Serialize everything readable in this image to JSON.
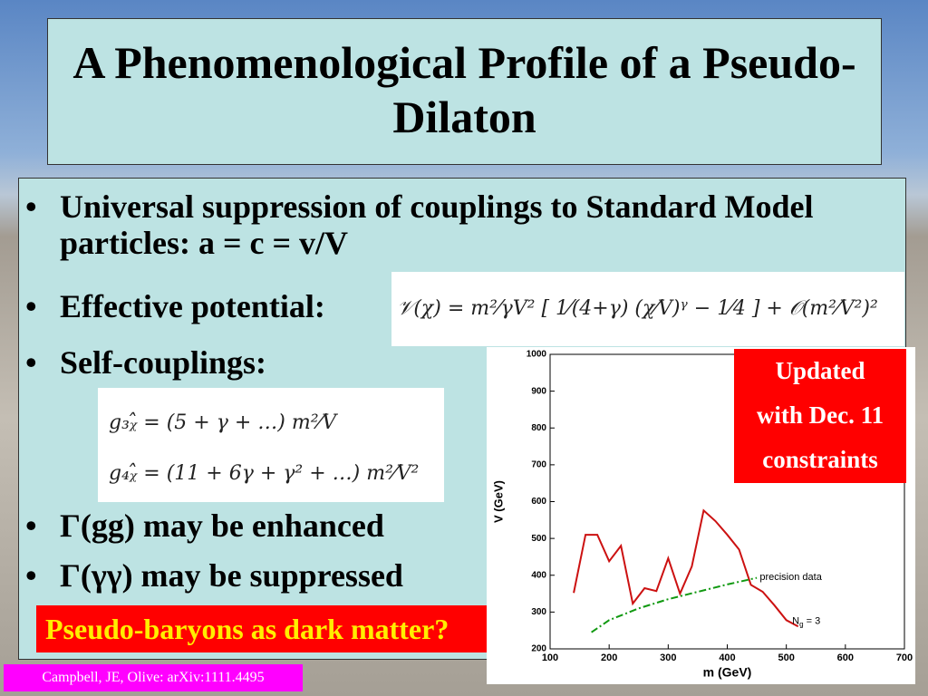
{
  "header": {
    "title": "A Phenomenological Profile of a Pseudo-Dilaton"
  },
  "bullets": [
    "Universal suppression of couplings to Standard Model particles: a = c = v/V",
    "Effective potential:",
    "Self-couplings:",
    "Γ(gg) may be enhanced",
    "Γ(γγ) may be suppressed"
  ],
  "equations": {
    "potential": "𝒱(χ) = m²⁄γV² [ 1⁄(4+γ) (χ⁄V)ᵞ − 1⁄4 ] + 𝒪(m²⁄V²)²",
    "g3": "g₃ᵪ̂ = (5 + γ + …) m²⁄V",
    "g4": "g₄ᵪ̂ = (11 + 6γ + γ² + …) m²⁄V²"
  },
  "callout": "Pseudo-baryons as dark matter?",
  "footer": "Campbell, JE, Olive: arXiv:1111.4495",
  "update_note": [
    "Updated",
    "with Dec. 11",
    "constraints"
  ],
  "chart_data": {
    "type": "line",
    "xlabel": "m (GeV)",
    "ylabel": "V (GeV)",
    "xlim": [
      100,
      700
    ],
    "ylim": [
      200,
      1000
    ],
    "xticks": [
      100,
      200,
      300,
      400,
      500,
      600,
      700
    ],
    "yticks": [
      200,
      300,
      400,
      500,
      600,
      700,
      800,
      900,
      1000
    ],
    "series": [
      {
        "name": "constraint",
        "color": "#cc1111",
        "style": "solid",
        "x": [
          140,
          160,
          180,
          200,
          220,
          240,
          260,
          280,
          300,
          320,
          340,
          360,
          380,
          400,
          420,
          440,
          460,
          480,
          500,
          520
        ],
        "values": [
          352,
          510,
          510,
          438,
          480,
          323,
          365,
          357,
          446,
          350,
          424,
          576,
          547,
          510,
          470,
          374,
          355,
          318,
          278,
          261
        ]
      },
      {
        "name": "precision data",
        "color": "#119911",
        "style": "dashdot",
        "x": [
          170,
          200,
          250,
          300,
          350,
          400,
          450
        ],
        "values": [
          245,
          278,
          310,
          335,
          355,
          375,
          393
        ]
      }
    ],
    "annotations": [
      {
        "text": "precision data",
        "x": 455,
        "y": 395
      },
      {
        "text": "N",
        "sub": "g",
        "rest": " = 3",
        "x": 510,
        "y": 275
      }
    ]
  }
}
